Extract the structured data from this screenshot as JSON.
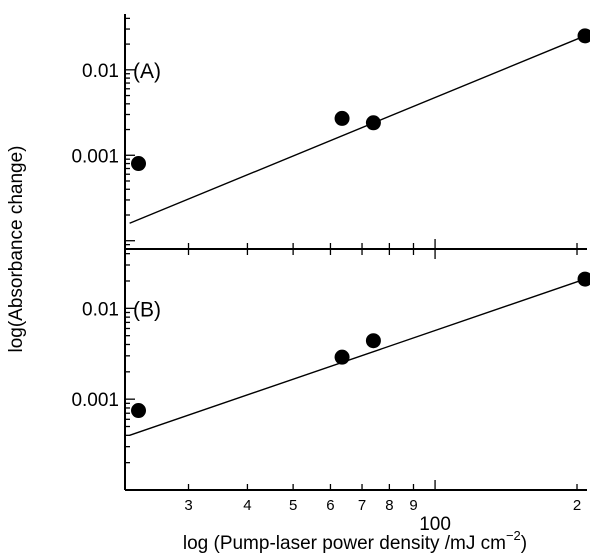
{
  "chart_data": {
    "type": "scatter",
    "xlabel": "log (Pump-laser power density /mJ cm",
    "xlabel_sup": "−2",
    "xlabel_close": ")",
    "ylabel": "log(Absorbance change)",
    "x_scale": "log",
    "y_scale": "log",
    "xlim": [
      22,
      210
    ],
    "x_ticks": [
      {
        "value": 30,
        "label": "3"
      },
      {
        "value": 40,
        "label": "4"
      },
      {
        "value": 50,
        "label": "5"
      },
      {
        "value": 60,
        "label": "6"
      },
      {
        "value": 70,
        "label": "7"
      },
      {
        "value": 80,
        "label": "8"
      },
      {
        "value": 90,
        "label": "9"
      },
      {
        "value": 100,
        "label": "100"
      },
      {
        "value": 200,
        "label": "2"
      }
    ],
    "panels": [
      {
        "label": "(A)",
        "ylim": [
          8e-05,
          0.045
        ],
        "y_ticks": [
          {
            "value": 0.001,
            "label": "0.001"
          },
          {
            "value": 0.01,
            "label": "0.01"
          }
        ],
        "points": [
          {
            "x": 23.5,
            "y": 0.0008
          },
          {
            "x": 63.5,
            "y": 0.0027
          },
          {
            "x": 74,
            "y": 0.0024
          },
          {
            "x": 208,
            "y": 0.025
          }
        ],
        "fit_line": {
          "x": [
            22.5,
            208
          ],
          "y": [
            0.00016,
            0.025
          ]
        }
      },
      {
        "label": "(B)",
        "ylim": [
          0.0001,
          0.045
        ],
        "y_ticks": [
          {
            "value": 0.001,
            "label": "0.001"
          },
          {
            "value": 0.01,
            "label": "0.01"
          }
        ],
        "points": [
          {
            "x": 23.5,
            "y": 0.00075
          },
          {
            "x": 63.5,
            "y": 0.0029
          },
          {
            "x": 74,
            "y": 0.0044
          },
          {
            "x": 208,
            "y": 0.021
          }
        ],
        "fit_line": {
          "x": [
            22.5,
            208
          ],
          "y": [
            0.0004,
            0.021
          ]
        }
      }
    ]
  }
}
